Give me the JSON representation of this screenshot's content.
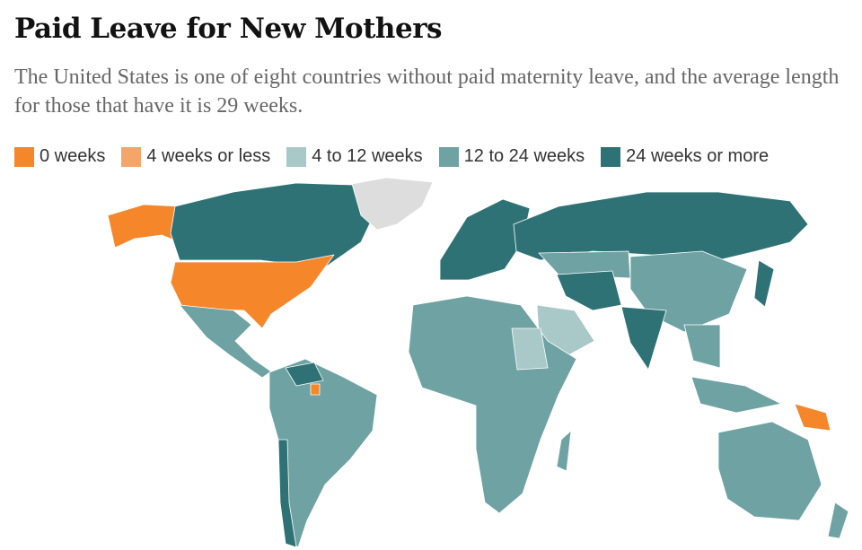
{
  "header": {
    "title": "Paid Leave for New Mothers",
    "subtitle": "The United States is one of eight countries without paid maternity leave, and the average length for those that have it is 29 weeks."
  },
  "legend": [
    {
      "label": "0 weeks",
      "color": "#f5862a"
    },
    {
      "label": "4 weeks or less",
      "color": "#f4a66a"
    },
    {
      "label": "4 to 12 weeks",
      "color": "#a9c8c8"
    },
    {
      "label": "12 to 24 weeks",
      "color": "#6fa2a3"
    },
    {
      "label": "24 weeks or more",
      "color": "#2f7276"
    }
  ],
  "no_data_color": "#dddddd"
}
